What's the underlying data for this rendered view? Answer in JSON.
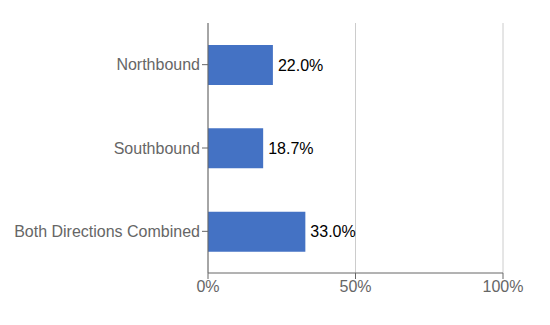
{
  "chart_data": {
    "type": "bar",
    "orientation": "horizontal",
    "categories": [
      "Both Directions Combined",
      "Southbound",
      "Northbound"
    ],
    "values": [
      0.33,
      0.187,
      0.22
    ],
    "value_labels": [
      "33.0%",
      "18.7%",
      "22.0%"
    ],
    "data_labels": true,
    "color": "#4472C4",
    "xlim": [
      0,
      1.0
    ],
    "xticks": [
      {
        "value": 0,
        "label": "0%"
      },
      {
        "value": 0.5,
        "label": "50%"
      },
      {
        "value": 1.0,
        "label": "100%"
      }
    ],
    "grid": true
  }
}
